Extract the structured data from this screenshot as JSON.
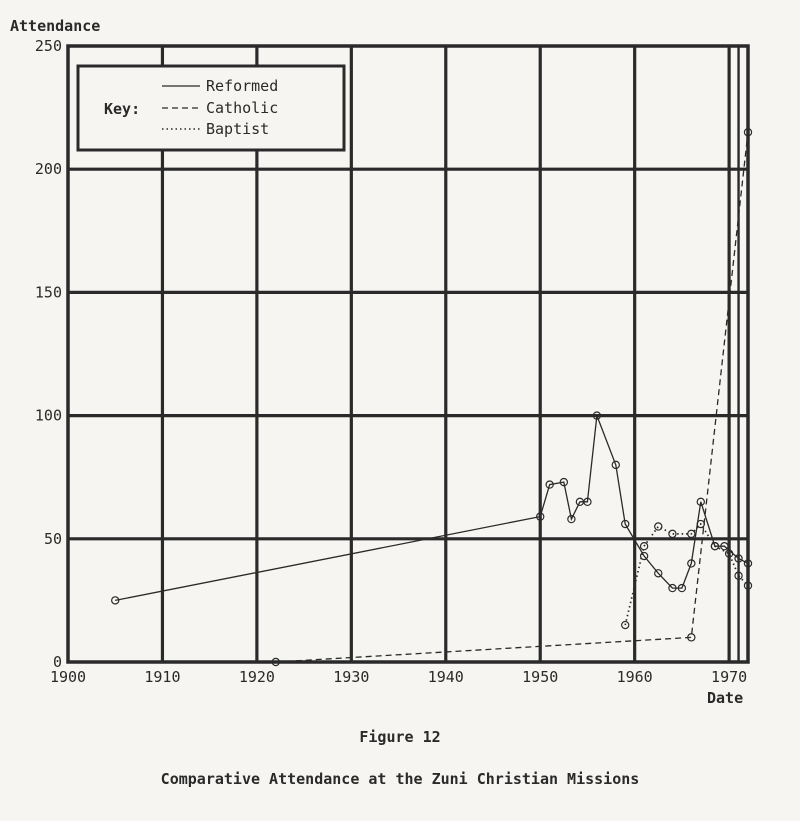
{
  "chart_data": {
    "type": "line",
    "ylabel": "Attendance",
    "xlabel": "Date",
    "xlim": [
      1900,
      1972
    ],
    "ylim": [
      0,
      250
    ],
    "x_ticks": [
      1900,
      1910,
      1920,
      1930,
      1940,
      1950,
      1960,
      1970
    ],
    "y_ticks": [
      0,
      50,
      100,
      150,
      200,
      250
    ],
    "grid": true,
    "legend": {
      "title": "Key:",
      "placement": "top-left",
      "entries": [
        "Reformed",
        "Catholic",
        "Baptist"
      ]
    },
    "series": [
      {
        "name": "Reformed",
        "style": "solid",
        "points": [
          [
            1905,
            25
          ],
          [
            1950,
            59
          ],
          [
            1951,
            72
          ],
          [
            1952.5,
            73
          ],
          [
            1953.3,
            58
          ],
          [
            1954.2,
            65
          ],
          [
            1955,
            65
          ],
          [
            1956,
            100
          ],
          [
            1958,
            80
          ],
          [
            1959,
            56
          ],
          [
            1961,
            43
          ],
          [
            1962.5,
            36
          ],
          [
            1964,
            30
          ],
          [
            1965,
            30
          ],
          [
            1966,
            40
          ],
          [
            1967,
            65
          ],
          [
            1968.5,
            47
          ],
          [
            1969.5,
            47
          ],
          [
            1971,
            42
          ],
          [
            1972,
            40
          ]
        ]
      },
      {
        "name": "Catholic",
        "style": "dashed",
        "points": [
          [
            1922,
            0
          ],
          [
            1966,
            10
          ],
          [
            1972,
            215
          ]
        ]
      },
      {
        "name": "Baptist",
        "style": "dotted",
        "points": [
          [
            1959,
            15
          ],
          [
            1961,
            47
          ],
          [
            1962.5,
            55
          ],
          [
            1964,
            52
          ],
          [
            1966,
            52
          ],
          [
            1967,
            56
          ],
          [
            1968.5,
            47
          ],
          [
            1970,
            44
          ],
          [
            1971,
            35
          ],
          [
            1972,
            31
          ]
        ]
      }
    ]
  },
  "figure": {
    "number": "Figure 12",
    "caption": "Comparative Attendance at the Zuni Christian Missions"
  }
}
